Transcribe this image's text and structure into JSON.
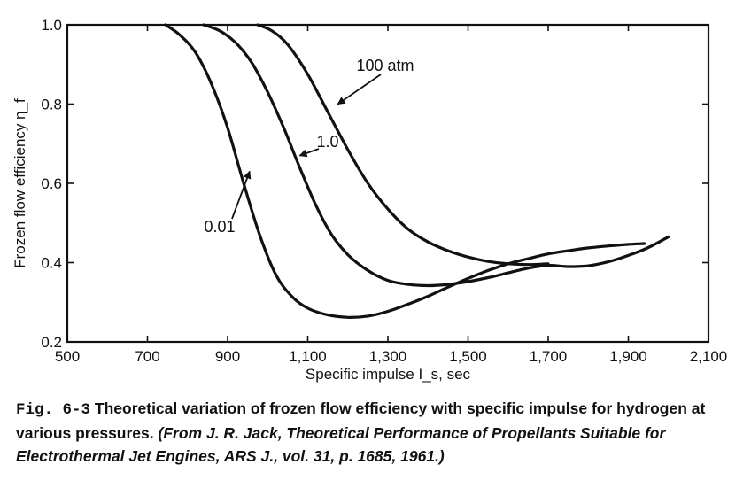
{
  "caption": {
    "figure_number": "Fig. 6-3",
    "text": "Theoretical variation of frozen flow efficiency with specific impulse for hydrogen at various pressures.",
    "source": "(From J. R. Jack, Theoretical Performance of Propellants Suitable for Electrothermal Jet Engines, ARS J., vol. 31, p. 1685, 1961.)"
  },
  "chart_data": {
    "type": "line",
    "title": "",
    "xlabel": "Specific impulse I_s, sec",
    "ylabel": "Frozen flow efficiency η_f",
    "xlim": [
      500,
      2100
    ],
    "ylim": [
      0.2,
      1.0
    ],
    "x_ticks": [
      500,
      700,
      900,
      1100,
      1300,
      1500,
      1700,
      1900,
      2100
    ],
    "x_tick_labels": [
      "500",
      "700",
      "900",
      "1,100",
      "1,300",
      "1,500",
      "1,700",
      "1,900",
      "2,100"
    ],
    "y_ticks": [
      0.2,
      0.4,
      0.6,
      0.8,
      1.0
    ],
    "y_tick_labels": [
      "0.2",
      "0.4",
      "0.6",
      "0.8",
      "1.0"
    ],
    "grid": false,
    "legend": "none",
    "series": [
      {
        "name": "0.01",
        "x": [
          745,
          780,
          820,
          860,
          900,
          940,
          980,
          1020,
          1060,
          1100,
          1150,
          1200,
          1250,
          1300,
          1350,
          1400,
          1450,
          1500,
          1550,
          1600,
          1650,
          1700,
          1750,
          1800,
          1850,
          1900,
          1940
        ],
        "y": [
          1.0,
          0.975,
          0.93,
          0.85,
          0.74,
          0.6,
          0.47,
          0.37,
          0.315,
          0.285,
          0.268,
          0.262,
          0.265,
          0.277,
          0.295,
          0.315,
          0.338,
          0.36,
          0.38,
          0.397,
          0.41,
          0.422,
          0.43,
          0.437,
          0.442,
          0.446,
          0.448
        ]
      },
      {
        "name": "1.0",
        "x": [
          840,
          880,
          920,
          960,
          1000,
          1040,
          1080,
          1120,
          1160,
          1200,
          1250,
          1300,
          1350,
          1400,
          1450,
          1500,
          1550,
          1600,
          1650,
          1700,
          1750,
          1800,
          1850,
          1900,
          1950,
          2000
        ],
        "y": [
          1.0,
          0.985,
          0.955,
          0.905,
          0.83,
          0.74,
          0.64,
          0.545,
          0.47,
          0.42,
          0.38,
          0.355,
          0.345,
          0.342,
          0.345,
          0.352,
          0.362,
          0.374,
          0.386,
          0.393,
          0.39,
          0.392,
          0.402,
          0.418,
          0.438,
          0.465
        ]
      },
      {
        "name": "100 atm",
        "x": [
          975,
          1010,
          1050,
          1100,
          1150,
          1200,
          1250,
          1300,
          1350,
          1400,
          1450,
          1500,
          1550,
          1600,
          1650,
          1700
        ],
        "y": [
          1.0,
          0.985,
          0.95,
          0.875,
          0.78,
          0.685,
          0.6,
          0.535,
          0.485,
          0.452,
          0.43,
          0.414,
          0.403,
          0.397,
          0.395,
          0.397
        ]
      }
    ],
    "annotations": [
      {
        "text": "0.01",
        "target_x": 955,
        "target_y": 0.63
      },
      {
        "text": "1.0",
        "target_x": 1080,
        "target_y": 0.67
      },
      {
        "text": "100 atm",
        "target_x": 1175,
        "target_y": 0.8
      }
    ]
  }
}
